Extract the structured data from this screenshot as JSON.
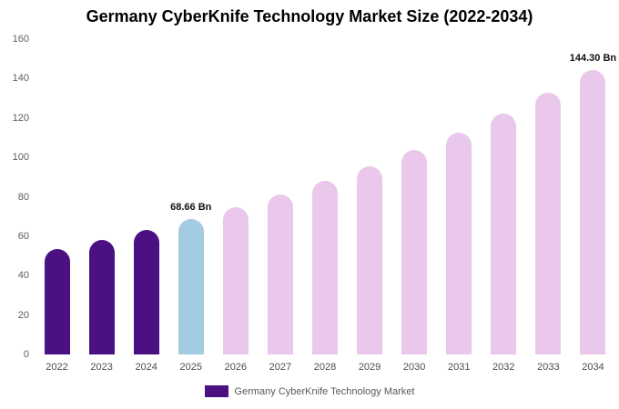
{
  "title": "Germany CyberKnife Technology Market Size (2022-2034)",
  "legend": {
    "label": "Germany CyberKnife Technology Market",
    "swatch_color": "#4b1182"
  },
  "chart_data": {
    "type": "bar",
    "title": "Germany CyberKnife Technology Market Size (2022-2034)",
    "xlabel": "",
    "ylabel": "",
    "categories": [
      "2022",
      "2023",
      "2024",
      "2025",
      "2026",
      "2027",
      "2028",
      "2029",
      "2030",
      "2031",
      "2032",
      "2033",
      "2034"
    ],
    "values": [
      53.6,
      58.2,
      63.2,
      68.66,
      74.6,
      81.0,
      88.0,
      95.5,
      103.8,
      112.7,
      122.4,
      132.9,
      144.3
    ],
    "ylim": [
      0,
      160
    ],
    "yticks": [
      0,
      20,
      40,
      60,
      80,
      100,
      120,
      140,
      160
    ],
    "grid": false,
    "legend_position": "bottom-center",
    "colors": {
      "past": "#4b1182",
      "current": "#a3cbe1",
      "forecast": "#e9c8ec"
    },
    "bar_roles": [
      "past",
      "past",
      "past",
      "current",
      "forecast",
      "forecast",
      "forecast",
      "forecast",
      "forecast",
      "forecast",
      "forecast",
      "forecast",
      "forecast"
    ],
    "annotations": [
      {
        "category": "2025",
        "index": 3,
        "label": "68.66 Bn"
      },
      {
        "category": "2034",
        "index": 12,
        "label": "144.30 Bn"
      }
    ]
  }
}
